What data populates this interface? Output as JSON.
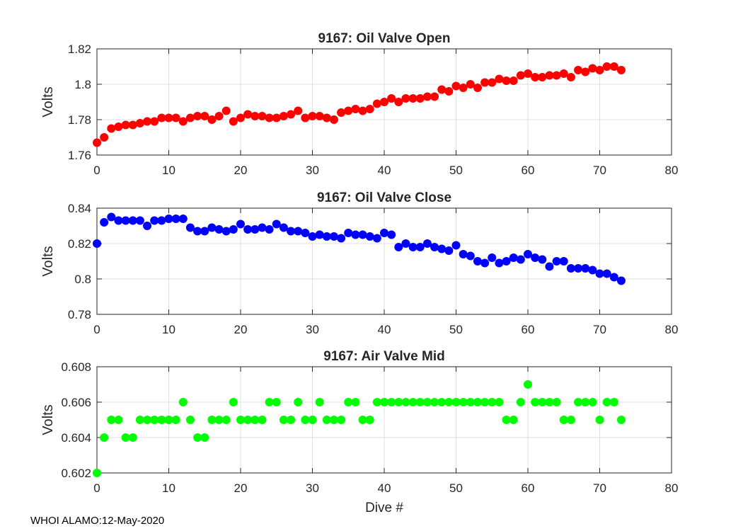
{
  "footer": "WHOI ALAMO:12-May-2020",
  "chart_data": [
    {
      "type": "scatter",
      "title": "9167: Oil Valve Open",
      "ylabel": "Volts",
      "xlabel": "",
      "xlim": [
        0,
        80
      ],
      "ylim": [
        1.76,
        1.82
      ],
      "xticks": [
        "0",
        "10",
        "20",
        "30",
        "40",
        "50",
        "60",
        "70",
        "80"
      ],
      "yticks": [
        "1.76",
        "1.78",
        "1.8",
        "1.82"
      ],
      "grid": true,
      "color": "#ff0000",
      "x": [
        0,
        1,
        2,
        3,
        4,
        5,
        6,
        7,
        8,
        9,
        10,
        11,
        12,
        13,
        14,
        15,
        16,
        17,
        18,
        19,
        20,
        21,
        22,
        23,
        24,
        25,
        26,
        27,
        28,
        29,
        30,
        31,
        32,
        33,
        34,
        35,
        36,
        37,
        38,
        39,
        40,
        41,
        42,
        43,
        44,
        45,
        46,
        47,
        48,
        49,
        50,
        51,
        52,
        53,
        54,
        55,
        56,
        57,
        58,
        59,
        60,
        61,
        62,
        63,
        64,
        65,
        66,
        67,
        68,
        69,
        70,
        71,
        72,
        73
      ],
      "y": [
        1.767,
        1.77,
        1.775,
        1.776,
        1.777,
        1.777,
        1.778,
        1.779,
        1.779,
        1.781,
        1.781,
        1.781,
        1.779,
        1.781,
        1.782,
        1.782,
        1.78,
        1.782,
        1.785,
        1.779,
        1.781,
        1.783,
        1.782,
        1.782,
        1.781,
        1.781,
        1.782,
        1.783,
        1.785,
        1.781,
        1.782,
        1.782,
        1.781,
        1.78,
        1.784,
        1.785,
        1.786,
        1.785,
        1.786,
        1.789,
        1.79,
        1.792,
        1.79,
        1.792,
        1.792,
        1.792,
        1.793,
        1.793,
        1.797,
        1.796,
        1.799,
        1.798,
        1.8,
        1.798,
        1.801,
        1.801,
        1.803,
        1.802,
        1.802,
        1.805,
        1.806,
        1.804,
        1.804,
        1.805,
        1.805,
        1.806,
        1.804,
        1.808,
        1.807,
        1.809,
        1.808,
        1.81,
        1.81,
        1.808
      ]
    },
    {
      "type": "scatter",
      "title": "9167: Oil Valve Close",
      "ylabel": "Volts",
      "xlabel": "",
      "xlim": [
        0,
        80
      ],
      "ylim": [
        0.78,
        0.84
      ],
      "xticks": [
        "0",
        "10",
        "20",
        "30",
        "40",
        "50",
        "60",
        "70",
        "80"
      ],
      "yticks": [
        "0.78",
        "0.8",
        "0.82",
        "0.84"
      ],
      "grid": true,
      "color": "#0000ff",
      "x": [
        0,
        1,
        2,
        3,
        4,
        5,
        6,
        7,
        8,
        9,
        10,
        11,
        12,
        13,
        14,
        15,
        16,
        17,
        18,
        19,
        20,
        21,
        22,
        23,
        24,
        25,
        26,
        27,
        28,
        29,
        30,
        31,
        32,
        33,
        34,
        35,
        36,
        37,
        38,
        39,
        40,
        41,
        42,
        43,
        44,
        45,
        46,
        47,
        48,
        49,
        50,
        51,
        52,
        53,
        54,
        55,
        56,
        57,
        58,
        59,
        60,
        61,
        62,
        63,
        64,
        65,
        66,
        67,
        68,
        69,
        70,
        71,
        72,
        73
      ],
      "y": [
        0.82,
        0.832,
        0.835,
        0.833,
        0.833,
        0.833,
        0.833,
        0.83,
        0.833,
        0.833,
        0.834,
        0.834,
        0.834,
        0.829,
        0.827,
        0.827,
        0.829,
        0.828,
        0.827,
        0.828,
        0.831,
        0.828,
        0.828,
        0.829,
        0.828,
        0.831,
        0.829,
        0.827,
        0.827,
        0.826,
        0.824,
        0.825,
        0.824,
        0.824,
        0.823,
        0.826,
        0.825,
        0.825,
        0.824,
        0.823,
        0.826,
        0.825,
        0.818,
        0.82,
        0.818,
        0.818,
        0.82,
        0.818,
        0.817,
        0.816,
        0.819,
        0.814,
        0.813,
        0.81,
        0.809,
        0.812,
        0.809,
        0.81,
        0.812,
        0.811,
        0.814,
        0.812,
        0.811,
        0.807,
        0.81,
        0.81,
        0.806,
        0.806,
        0.806,
        0.805,
        0.803,
        0.803,
        0.801,
        0.799
      ]
    },
    {
      "type": "scatter",
      "title": "9167: Air Valve Mid",
      "ylabel": "Volts",
      "xlabel": "Dive #",
      "xlim": [
        0,
        80
      ],
      "ylim": [
        0.602,
        0.608
      ],
      "xticks": [
        "0",
        "10",
        "20",
        "30",
        "40",
        "50",
        "60",
        "70",
        "80"
      ],
      "yticks": [
        "0.602",
        "0.604",
        "0.606",
        "0.608"
      ],
      "grid": true,
      "color": "#00ff00",
      "x": [
        0,
        1,
        2,
        3,
        4,
        5,
        6,
        7,
        8,
        9,
        10,
        11,
        12,
        13,
        14,
        15,
        16,
        17,
        18,
        19,
        20,
        21,
        22,
        23,
        24,
        25,
        26,
        27,
        28,
        29,
        30,
        31,
        32,
        33,
        34,
        35,
        36,
        37,
        38,
        39,
        40,
        41,
        42,
        43,
        44,
        45,
        46,
        47,
        48,
        49,
        50,
        51,
        52,
        53,
        54,
        55,
        56,
        57,
        58,
        59,
        60,
        61,
        62,
        63,
        64,
        65,
        66,
        67,
        68,
        69,
        70,
        71,
        72,
        73
      ],
      "y": [
        0.602,
        0.604,
        0.605,
        0.605,
        0.604,
        0.604,
        0.605,
        0.605,
        0.605,
        0.605,
        0.605,
        0.605,
        0.606,
        0.605,
        0.604,
        0.604,
        0.605,
        0.605,
        0.605,
        0.606,
        0.605,
        0.605,
        0.605,
        0.605,
        0.606,
        0.606,
        0.605,
        0.605,
        0.606,
        0.605,
        0.605,
        0.606,
        0.605,
        0.605,
        0.605,
        0.606,
        0.606,
        0.605,
        0.605,
        0.606,
        0.606,
        0.606,
        0.606,
        0.606,
        0.606,
        0.606,
        0.606,
        0.606,
        0.606,
        0.606,
        0.606,
        0.606,
        0.606,
        0.606,
        0.606,
        0.606,
        0.606,
        0.605,
        0.605,
        0.606,
        0.607,
        0.606,
        0.606,
        0.606,
        0.606,
        0.605,
        0.605,
        0.606,
        0.606,
        0.606,
        0.605,
        0.606,
        0.606,
        0.605
      ]
    }
  ]
}
